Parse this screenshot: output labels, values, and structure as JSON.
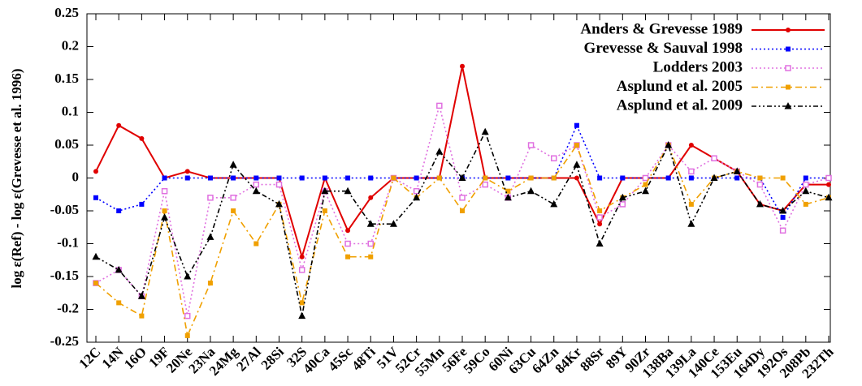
{
  "chart_data": {
    "type": "line",
    "ylabel": "log ε(Ref) - log ε(Grevesse et al. 1996)",
    "categories": [
      "12C",
      "14N",
      "16O",
      "19F",
      "20Ne",
      "23Na",
      "24Mg",
      "27Al",
      "28Si",
      "32S",
      "40Ca",
      "45Sc",
      "48Ti",
      "51V",
      "52Cr",
      "55Mn",
      "56Fe",
      "59Co",
      "60Ni",
      "63Cu",
      "64Zn",
      "84Kr",
      "88Sr",
      "89Y",
      "90Zr",
      "138Ba",
      "139La",
      "140Ce",
      "153Eu",
      "164Dy",
      "192Os",
      "208Pb",
      "232Th"
    ],
    "series": [
      {
        "name": "Anders & Grevesse 1989",
        "color": "#e00000",
        "dash": "solid",
        "marker": "circle",
        "values": [
          0.01,
          0.08,
          0.06,
          0,
          0.01,
          0,
          0,
          0,
          0,
          -0.12,
          0,
          -0.08,
          -0.03,
          0,
          0,
          0,
          0.17,
          0,
          0,
          0,
          0,
          0,
          -0.07,
          0,
          0,
          0,
          0.05,
          0.03,
          0.01,
          -0.04,
          -0.05,
          -0.01,
          -0.01
        ]
      },
      {
        "name": "Grevesse & Sauval 1998",
        "color": "#0000ff",
        "dash": "dotted",
        "marker": "square",
        "values": [
          -0.03,
          -0.05,
          -0.04,
          0,
          0,
          0,
          0,
          0,
          0,
          0,
          0,
          0,
          0,
          0,
          0,
          0,
          0,
          0,
          0,
          0,
          0,
          0.08,
          0,
          0,
          0,
          0,
          0,
          0,
          0,
          0,
          -0.06,
          0,
          0
        ]
      },
      {
        "name": "Lodders 2003",
        "color": "#e070e0",
        "dash": "dotted",
        "marker": "open-square",
        "values": [
          -0.16,
          -0.14,
          -0.18,
          -0.02,
          -0.21,
          -0.03,
          -0.03,
          -0.01,
          -0.01,
          -0.14,
          -0.02,
          -0.1,
          -0.1,
          0,
          -0.02,
          0.11,
          -0.03,
          -0.01,
          -0.03,
          0.05,
          0.03,
          0.05,
          -0.06,
          -0.04,
          0,
          0.05,
          0.01,
          0.03,
          0.01,
          -0.01,
          -0.08,
          -0.01,
          0
        ]
      },
      {
        "name": "Asplund et al. 2005",
        "color": "#f0a000",
        "dash": "dashdot",
        "marker": "square",
        "values": [
          -0.16,
          -0.19,
          -0.21,
          -0.05,
          -0.24,
          -0.16,
          -0.05,
          -0.1,
          -0.04,
          -0.19,
          -0.05,
          -0.12,
          -0.12,
          0,
          -0.03,
          0,
          -0.05,
          0,
          -0.02,
          0,
          0,
          0.05,
          -0.05,
          -0.03,
          -0.01,
          0.05,
          -0.04,
          0,
          0.01,
          0,
          0,
          -0.04,
          -0.03
        ]
      },
      {
        "name": "Asplund et al. 2009",
        "color": "#000000",
        "dash": "dashdotdot",
        "marker": "triangle",
        "values": [
          -0.12,
          -0.14,
          -0.18,
          -0.06,
          -0.15,
          -0.09,
          0.02,
          -0.02,
          -0.04,
          -0.21,
          -0.02,
          -0.02,
          -0.07,
          -0.07,
          -0.03,
          0.04,
          0,
          0.07,
          -0.03,
          -0.02,
          -0.04,
          0.02,
          -0.1,
          -0.03,
          -0.02,
          0.05,
          -0.07,
          0,
          0.01,
          -0.04,
          -0.05,
          -0.02,
          -0.03
        ]
      }
    ],
    "ylim": [
      -0.25,
      0.25
    ],
    "yticks": [
      0.25,
      0.2,
      0.15,
      0.1,
      0.05,
      0,
      -0.05,
      -0.1,
      -0.15,
      -0.2,
      -0.25
    ],
    "legend": "top-right"
  }
}
